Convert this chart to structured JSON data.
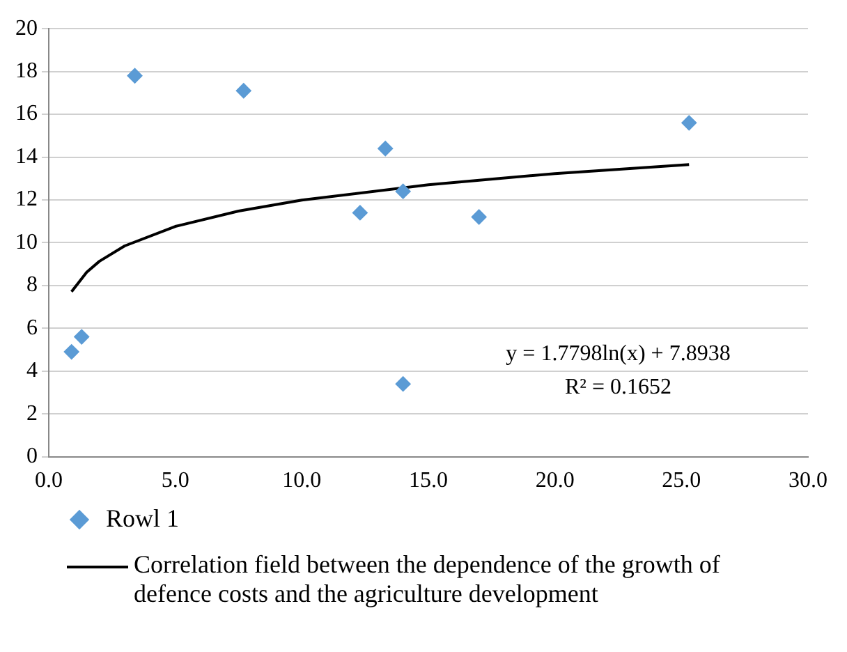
{
  "chart_data": {
    "type": "scatter",
    "xlim": [
      0,
      30
    ],
    "xticks": [
      {
        "value": 0,
        "label": "0.0"
      },
      {
        "value": 5,
        "label": "5.0"
      },
      {
        "value": 10,
        "label": "10.0"
      },
      {
        "value": 15,
        "label": "15.0"
      },
      {
        "value": 20,
        "label": "20.0"
      },
      {
        "value": 25,
        "label": "25.0"
      },
      {
        "value": 30,
        "label": "30.0"
      }
    ],
    "ylim": [
      0,
      20
    ],
    "yticks": [
      0,
      2,
      4,
      6,
      8,
      10,
      12,
      14,
      16,
      18,
      20
    ],
    "grid": "y",
    "legend": "bottom",
    "series": [
      {
        "name": "Rowl 1",
        "color": "#5b9bd5",
        "marker": "diamond",
        "x": [
          0.9,
          1.3,
          3.4,
          7.7,
          12.3,
          13.3,
          14.0,
          14.0,
          17.0,
          25.3
        ],
        "values": [
          4.9,
          5.6,
          17.8,
          17.1,
          11.4,
          14.4,
          12.4,
          3.4,
          11.2,
          15.6
        ]
      },
      {
        "name": "Correlation field between the dependence of the growth of defence costs and the agriculture development",
        "color": "#000000",
        "type": "line",
        "marker": "none",
        "x": [
          0.9,
          1.5,
          2,
          3,
          5,
          7.5,
          10,
          15,
          20,
          25.3
        ],
        "values": [
          7.71,
          8.62,
          9.13,
          9.85,
          10.76,
          11.48,
          11.99,
          12.71,
          13.23,
          13.65
        ]
      }
    ],
    "annotations": [
      "y = 1.7798ln(x) + 7.8938",
      "R² = 0.1652"
    ]
  }
}
